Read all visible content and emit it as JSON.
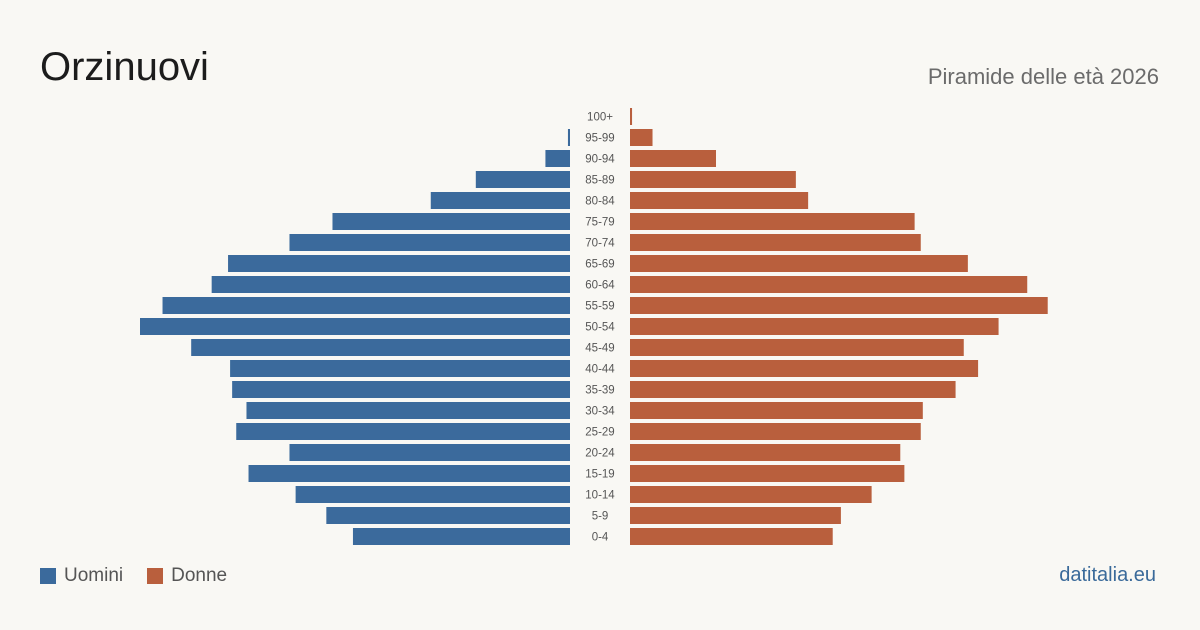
{
  "header": {
    "title": "Orzinuovi",
    "subtitle": "Piramide delle età 2026"
  },
  "legend": {
    "men_label": "Uomini",
    "women_label": "Donne"
  },
  "colors": {
    "men": "#3b6a9c",
    "women": "#b95f3d",
    "background": "#f9f8f4"
  },
  "source": "datitalia.eu",
  "chart_data": {
    "type": "bar",
    "orientation": "horizontal-pyramid",
    "categories": [
      "100+",
      "95-99",
      "90-94",
      "85-89",
      "80-84",
      "75-79",
      "70-74",
      "65-69",
      "60-64",
      "55-59",
      "50-54",
      "45-49",
      "40-44",
      "35-39",
      "30-34",
      "25-29",
      "20-24",
      "15-19",
      "10-14",
      "5-9",
      "0-4"
    ],
    "series": [
      {
        "name": "Uomini",
        "values": [
          0,
          1,
          12,
          46,
          68,
          116,
          137,
          167,
          175,
          199,
          210,
          185,
          166,
          165,
          158,
          163,
          137,
          157,
          134,
          119,
          106
        ]
      },
      {
        "name": "Donne",
        "values": [
          1,
          11,
          42,
          81,
          87,
          139,
          142,
          165,
          194,
          204,
          180,
          163,
          170,
          159,
          143,
          142,
          132,
          134,
          118,
          103,
          99
        ]
      }
    ],
    "xmax": 210,
    "grid": false,
    "legend_position": "bottom-left"
  }
}
